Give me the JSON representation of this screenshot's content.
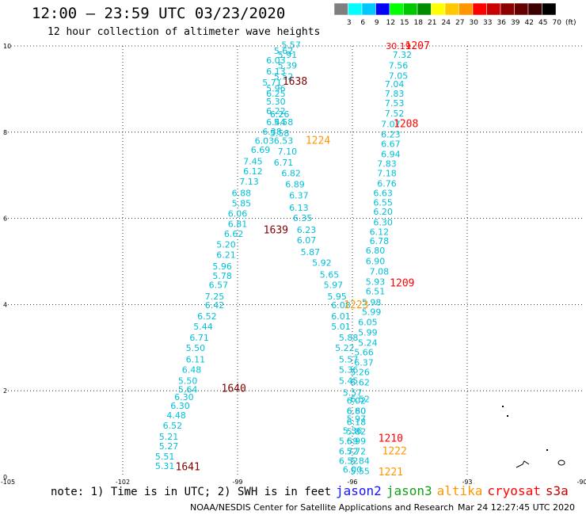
{
  "title": "12:00 – 23:59 UTC 03/23/2020",
  "subtitle": "12 hour collection of altimeter wave heights",
  "colorbar": {
    "labels": [
      "3",
      "6",
      "9",
      "12",
      "15",
      "18",
      "21",
      "24",
      "27",
      "30",
      "33",
      "36",
      "39",
      "42",
      "45",
      "70",
      "(ft)"
    ],
    "colors": [
      "#7f7f7f",
      "#00ffff",
      "#00c8ff",
      "#0000ff",
      "#00ff00",
      "#00c800",
      "#008c00",
      "#ffff00",
      "#ffc800",
      "#ff9600",
      "#ff0000",
      "#c80000",
      "#8c0000",
      "#640000",
      "#3c0000",
      "#000000"
    ]
  },
  "axes": {
    "x_ticks": [
      "-105",
      "-102",
      "-99",
      "-96",
      "-93",
      "-90"
    ],
    "y_ticks": [
      "0",
      "2",
      "4",
      "6",
      "8",
      "10"
    ]
  },
  "notes": {
    "text": "note: 1) Time is in UTC; 2) SWH is in feet",
    "satellites": [
      {
        "name": "jason2",
        "color": "#1414ff"
      },
      {
        "name": "jason3",
        "color": "#12a012"
      },
      {
        "name": "altika",
        "color": "#ff9600"
      },
      {
        "name": "cryosat",
        "color": "#ff0000"
      },
      {
        "name": "s3a",
        "color": "#c80000"
      }
    ]
  },
  "credit": "NOAA/NESDIS Center for Satellite Applications and Research",
  "timestamp": "Mar 24 12:27:45 UTC 2020",
  "chart_data": {
    "type": "scatter",
    "xlim": [
      -105,
      -90
    ],
    "ylim": [
      0,
      10
    ],
    "grid": true,
    "tracks": [
      {
        "labels": [
          {
            "text": "1638",
            "x": -97.5,
            "y": 9.1,
            "color": "#800000"
          }
        ],
        "color": "#00c0d8",
        "points": [
          {
            "x": -97.6,
            "y": 9.95,
            "v": "5.57"
          },
          {
            "x": -97.8,
            "y": 9.82,
            "v": "5.62"
          },
          {
            "x": -97.7,
            "y": 9.72,
            "v": "5.91"
          },
          {
            "x": -98.0,
            "y": 9.6,
            "v": "6.03"
          },
          {
            "x": -97.7,
            "y": 9.48,
            "v": "5.39"
          },
          {
            "x": -98.0,
            "y": 9.34,
            "v": "6.13"
          },
          {
            "x": -97.8,
            "y": 9.22,
            "v": "5.52"
          },
          {
            "x": -98.1,
            "y": 9.08,
            "v": "5.71"
          },
          {
            "x": -98.0,
            "y": 8.94,
            "v": "5.96"
          },
          {
            "x": -98.0,
            "y": 8.82,
            "v": "6.25"
          },
          {
            "x": -98.0,
            "y": 8.64,
            "v": "5.30"
          },
          {
            "x": -98.0,
            "y": 8.42,
            "v": "6.22"
          },
          {
            "x": -97.9,
            "y": 8.35,
            "v": "6.26"
          },
          {
            "x": -98.0,
            "y": 8.16,
            "v": "6.44"
          },
          {
            "x": -97.8,
            "y": 8.16,
            "v": "5.58"
          },
          {
            "x": -98.1,
            "y": 7.94,
            "v": "6.38"
          },
          {
            "x": -97.9,
            "y": 7.9,
            "v": "5.58"
          },
          {
            "x": -98.3,
            "y": 7.73,
            "v": "6.03"
          },
          {
            "x": -97.8,
            "y": 7.73,
            "v": "6.53"
          },
          {
            "x": -98.4,
            "y": 7.52,
            "v": "6.69"
          },
          {
            "x": -97.7,
            "y": 7.48,
            "v": "7.10"
          },
          {
            "x": -98.6,
            "y": 7.25,
            "v": "7.45"
          },
          {
            "x": -97.8,
            "y": 7.22,
            "v": "6.71"
          },
          {
            "x": -98.6,
            "y": 7.02,
            "v": "6.12"
          },
          {
            "x": -97.6,
            "y": 6.98,
            "v": "6.82"
          },
          {
            "x": -98.7,
            "y": 6.78,
            "v": "7.13"
          },
          {
            "x": -97.5,
            "y": 6.72,
            "v": "6.89"
          },
          {
            "x": -98.9,
            "y": 6.52,
            "v": "6.88"
          },
          {
            "x": -97.4,
            "y": 6.46,
            "v": "6.37"
          },
          {
            "x": -98.9,
            "y": 6.28,
            "v": "5.85"
          },
          {
            "x": -97.4,
            "y": 6.18,
            "v": "6.13"
          },
          {
            "x": -99.0,
            "y": 6.04,
            "v": "6.06"
          },
          {
            "x": -97.3,
            "y": 5.94,
            "v": "6.35"
          },
          {
            "x": -99.0,
            "y": 5.8,
            "v": "6.81"
          },
          {
            "x": -97.2,
            "y": 5.66,
            "v": "6.23"
          },
          {
            "x": -99.1,
            "y": 5.57,
            "v": "6.62"
          },
          {
            "x": -97.2,
            "y": 5.42,
            "v": "6.07"
          },
          {
            "x": -99.3,
            "y": 5.32,
            "v": "5.20"
          },
          {
            "x": -97.1,
            "y": 5.15,
            "v": "5.87"
          },
          {
            "x": -99.3,
            "y": 5.08,
            "v": "6.21"
          },
          {
            "x": -96.8,
            "y": 4.9,
            "v": "5.92"
          },
          {
            "x": -99.4,
            "y": 4.82,
            "v": "5.96"
          },
          {
            "x": -96.6,
            "y": 4.62,
            "v": "5.65"
          },
          {
            "x": -99.4,
            "y": 4.6,
            "v": "5.78"
          },
          {
            "x": -96.5,
            "y": 4.38,
            "v": "5.97"
          },
          {
            "x": -99.5,
            "y": 4.38,
            "v": "6.57"
          },
          {
            "x": -99.6,
            "y": 4.12,
            "v": "7.25"
          },
          {
            "x": -96.4,
            "y": 4.12,
            "v": "5.95"
          },
          {
            "x": -99.6,
            "y": 3.92,
            "v": "6.42"
          },
          {
            "x": -96.3,
            "y": 3.92,
            "v": "6.08"
          },
          {
            "x": -99.8,
            "y": 3.66,
            "v": "6.52"
          },
          {
            "x": -96.3,
            "y": 3.66,
            "v": "6.01"
          },
          {
            "x": -99.9,
            "y": 3.42,
            "v": "5.44"
          },
          {
            "x": -96.3,
            "y": 3.42,
            "v": "5.01"
          },
          {
            "x": -100.0,
            "y": 3.16,
            "v": "6.71"
          },
          {
            "x": -96.1,
            "y": 3.16,
            "v": "5.88"
          },
          {
            "x": -100.1,
            "y": 2.92,
            "v": "5.50"
          },
          {
            "x": -96.2,
            "y": 2.92,
            "v": "5.22"
          },
          {
            "x": -100.1,
            "y": 2.66,
            "v": "6.11"
          },
          {
            "x": -96.1,
            "y": 2.66,
            "v": "5.57"
          },
          {
            "x": -100.2,
            "y": 2.42,
            "v": "6.48"
          },
          {
            "x": -96.1,
            "y": 2.42,
            "v": "5.36"
          },
          {
            "x": -100.3,
            "y": 2.16,
            "v": "5.50"
          },
          {
            "x": -96.1,
            "y": 2.16,
            "v": "5.45"
          },
          {
            "x": -100.3,
            "y": 1.96,
            "v": "5.64"
          },
          {
            "x": -96.0,
            "y": 1.88,
            "v": "5.57"
          },
          {
            "x": -100.4,
            "y": 1.78,
            "v": "6.30"
          },
          {
            "x": -95.8,
            "y": 1.74,
            "v": "6.52"
          },
          {
            "x": -100.5,
            "y": 1.58,
            "v": "6.30"
          },
          {
            "x": -95.9,
            "y": 1.46,
            "v": "6.60"
          },
          {
            "x": -100.6,
            "y": 1.36,
            "v": "4.48"
          },
          {
            "x": -95.9,
            "y": 1.28,
            "v": "5.97"
          },
          {
            "x": -100.7,
            "y": 1.12,
            "v": "6.52"
          },
          {
            "x": -96.0,
            "y": 1.0,
            "v": "5.36"
          },
          {
            "x": -100.8,
            "y": 0.86,
            "v": "5.21"
          },
          {
            "x": -96.1,
            "y": 0.76,
            "v": "5.59"
          },
          {
            "x": -100.8,
            "y": 0.64,
            "v": "5.27"
          },
          {
            "x": -96.1,
            "y": 0.52,
            "v": "6.72"
          },
          {
            "x": -100.9,
            "y": 0.4,
            "v": "5.51"
          },
          {
            "x": -96.1,
            "y": 0.3,
            "v": "6.52"
          },
          {
            "x": -100.9,
            "y": 0.18,
            "v": "5.31"
          },
          {
            "x": -96.0,
            "y": 0.1,
            "v": "6.00"
          }
        ]
      },
      {
        "labels": [
          {
            "text": "1639",
            "x": -98.0,
            "y": 5.65,
            "color": "#800000"
          },
          {
            "text": "1640",
            "x": -99.1,
            "y": 1.98,
            "color": "#800000"
          },
          {
            "text": "1641",
            "x": -100.3,
            "y": 0.16,
            "color": "#800000"
          }
        ],
        "color": "#00c0d8",
        "points": []
      },
      {
        "labels": [
          {
            "text": "1207",
            "x": -94.3,
            "y": 9.93,
            "color": "#ff0000"
          },
          {
            "text": "1208",
            "x": -94.6,
            "y": 8.12,
            "color": "#ff0000"
          },
          {
            "text": "1209",
            "x": -94.7,
            "y": 4.42,
            "color": "#ff0000"
          },
          {
            "text": "1210",
            "x": -95.0,
            "y": 0.82,
            "color": "#ff0000"
          }
        ],
        "color": "#00c0d8",
        "points": [
          {
            "x": -94.8,
            "y": 9.93,
            "v": "30.19",
            "color": "#ff0000"
          },
          {
            "x": -94.7,
            "y": 9.72,
            "v": "7.32"
          },
          {
            "x": -94.8,
            "y": 9.48,
            "v": "7.56"
          },
          {
            "x": -94.8,
            "y": 9.24,
            "v": "7.05"
          },
          {
            "x": -94.9,
            "y": 9.04,
            "v": "7.04"
          },
          {
            "x": -94.9,
            "y": 8.82,
            "v": "7.83"
          },
          {
            "x": -94.9,
            "y": 8.6,
            "v": "7.53"
          },
          {
            "x": -94.9,
            "y": 8.36,
            "v": "7.52"
          },
          {
            "x": -95.0,
            "y": 8.12,
            "v": "7.07"
          },
          {
            "x": -95.0,
            "y": 7.88,
            "v": "6.23"
          },
          {
            "x": -95.0,
            "y": 7.66,
            "v": "6.67"
          },
          {
            "x": -95.0,
            "y": 7.42,
            "v": "6.94"
          },
          {
            "x": -95.1,
            "y": 7.2,
            "v": "7.83"
          },
          {
            "x": -95.1,
            "y": 6.98,
            "v": "7.18"
          },
          {
            "x": -95.1,
            "y": 6.74,
            "v": "6.76"
          },
          {
            "x": -95.2,
            "y": 6.52,
            "v": "6.63"
          },
          {
            "x": -95.2,
            "y": 6.3,
            "v": "6.55"
          },
          {
            "x": -95.2,
            "y": 6.08,
            "v": "6.20"
          },
          {
            "x": -95.2,
            "y": 5.84,
            "v": "6.30"
          },
          {
            "x": -95.3,
            "y": 5.62,
            "v": "6.12"
          },
          {
            "x": -95.3,
            "y": 5.4,
            "v": "6.78"
          },
          {
            "x": -95.4,
            "y": 5.18,
            "v": "6.80"
          },
          {
            "x": -95.4,
            "y": 4.94,
            "v": "6.90"
          },
          {
            "x": -95.3,
            "y": 4.7,
            "v": "7.08"
          },
          {
            "x": -95.4,
            "y": 4.46,
            "v": "5.93"
          },
          {
            "x": -95.4,
            "y": 4.24,
            "v": "6.51"
          },
          {
            "x": -95.5,
            "y": 3.98,
            "v": "5.98"
          },
          {
            "x": -95.5,
            "y": 3.76,
            "v": "5.99"
          },
          {
            "x": -95.6,
            "y": 3.52,
            "v": "6.05"
          },
          {
            "x": -95.6,
            "y": 3.28,
            "v": "5.99"
          },
          {
            "x": -95.6,
            "y": 3.04,
            "v": "5.24"
          },
          {
            "x": -95.7,
            "y": 2.82,
            "v": "5.66"
          },
          {
            "x": -95.7,
            "y": 2.58,
            "v": "6.37"
          },
          {
            "x": -95.8,
            "y": 2.36,
            "v": "5.26"
          },
          {
            "x": -95.8,
            "y": 2.12,
            "v": "6.62"
          },
          {
            "x": -95.9,
            "y": 1.7,
            "v": "6.02"
          },
          {
            "x": -95.9,
            "y": 1.46,
            "v": "6.80"
          },
          {
            "x": -95.9,
            "y": 1.2,
            "v": "6.18"
          },
          {
            "x": -95.9,
            "y": 0.98,
            "v": "5.82"
          },
          {
            "x": -95.9,
            "y": 0.76,
            "v": "6.99"
          },
          {
            "x": -95.9,
            "y": 0.52,
            "v": "5.72"
          },
          {
            "x": -95.8,
            "y": 0.3,
            "v": "5.84"
          },
          {
            "x": -95.8,
            "y": 0.06,
            "v": "5.55"
          }
        ]
      },
      {
        "labels": [
          {
            "text": "1224",
            "x": -96.9,
            "y": 7.73,
            "color": "#ff9600"
          },
          {
            "text": "1223",
            "x": -95.9,
            "y": 3.92,
            "color": "#ff9600"
          },
          {
            "text": "1222",
            "x": -94.9,
            "y": 0.52,
            "color": "#ff9600"
          },
          {
            "text": "1221",
            "x": -95.0,
            "y": 0.04,
            "color": "#ff9600"
          }
        ],
        "color": "#ff9600",
        "points": []
      }
    ]
  }
}
